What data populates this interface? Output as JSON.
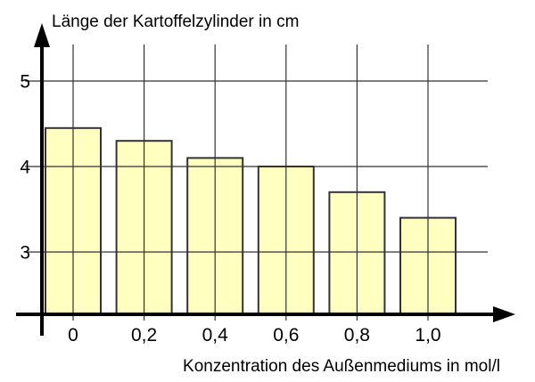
{
  "chart_data": {
    "type": "bar",
    "title": "Länge der Kartoffelzylinder in cm",
    "xlabel": "Konzentration des Außenmediums in mol/l",
    "ylabel": "",
    "categories": [
      "0",
      "0,2",
      "0,4",
      "0,6",
      "0,8",
      "1,0"
    ],
    "values": [
      4.45,
      4.3,
      4.1,
      4.0,
      3.7,
      3.4
    ],
    "y_ticks": [
      5,
      4,
      3
    ],
    "ylim": [
      2.3,
      5.5
    ],
    "grid": true,
    "legend_position": "none",
    "colors": {
      "bar_fill": "#FFFFC0",
      "bar_border": "#333333",
      "grid": "#333333",
      "axis": "#000000",
      "text": "#000000"
    }
  }
}
